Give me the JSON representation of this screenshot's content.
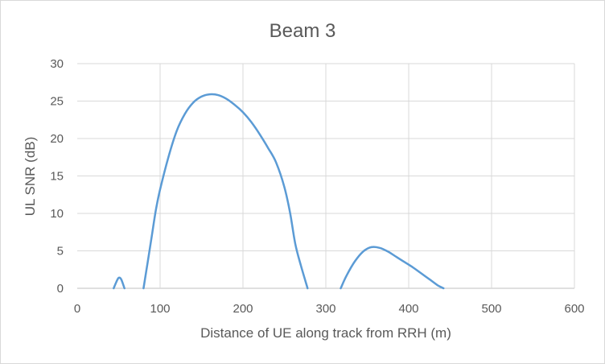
{
  "chart_data": {
    "type": "line",
    "title": "Beam 3",
    "xlabel": "Distance of UE along track from RRH (m)",
    "ylabel": "UL SNR (dB)",
    "xlim": [
      0,
      600
    ],
    "ylim": [
      0,
      30
    ],
    "xticks": [
      0,
      100,
      200,
      300,
      400,
      500,
      600
    ],
    "yticks": [
      0,
      5,
      10,
      15,
      20,
      25,
      30
    ],
    "grid": true,
    "line_color": "#5b9bd5",
    "series": [
      {
        "segments": [
          [
            [
              44,
              0
            ],
            [
              47,
              0.8
            ],
            [
              50,
              1.4
            ],
            [
              53,
              1.2
            ],
            [
              57,
              0
            ]
          ],
          [
            [
              80,
              0
            ],
            [
              85,
              3.5
            ],
            [
              90,
              7
            ],
            [
              95,
              10.5
            ],
            [
              100,
              13.2
            ],
            [
              110,
              17.5
            ],
            [
              120,
              21
            ],
            [
              130,
              23.3
            ],
            [
              140,
              24.8
            ],
            [
              150,
              25.6
            ],
            [
              160,
              25.9
            ],
            [
              170,
              25.8
            ],
            [
              180,
              25.3
            ],
            [
              190,
              24.5
            ],
            [
              200,
              23.5
            ],
            [
              210,
              22.2
            ],
            [
              220,
              20.6
            ],
            [
              230,
              18.8
            ],
            [
              240,
              16.8
            ],
            [
              250,
              13.5
            ],
            [
              257,
              10
            ],
            [
              263,
              6
            ],
            [
              270,
              3
            ],
            [
              278,
              0
            ]
          ],
          [
            [
              318,
              0
            ],
            [
              325,
              1.7
            ],
            [
              335,
              3.6
            ],
            [
              345,
              4.9
            ],
            [
              355,
              5.5
            ],
            [
              365,
              5.4
            ],
            [
              375,
              4.9
            ],
            [
              385,
              4.2
            ],
            [
              395,
              3.5
            ],
            [
              405,
              2.8
            ],
            [
              415,
              2
            ],
            [
              425,
              1.2
            ],
            [
              435,
              0.4
            ],
            [
              442,
              0
            ]
          ]
        ]
      }
    ]
  }
}
